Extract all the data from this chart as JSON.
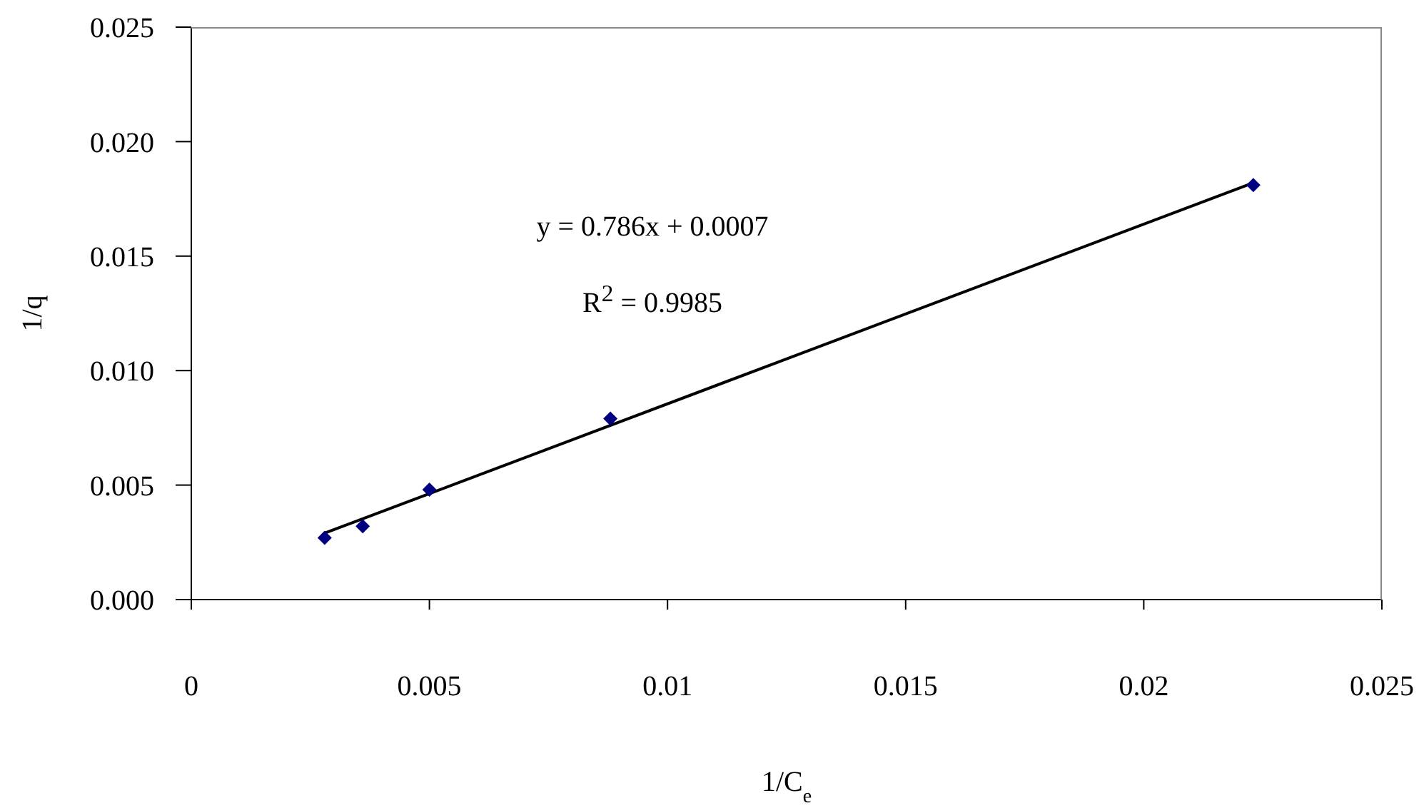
{
  "chart_data": {
    "type": "scatter",
    "xlabel": "1/C$_{e}$",
    "ylabel": "1/q",
    "annotations": [
      "y = 0.786x + 0.0007",
      "R$^{2}$ = 0.9985"
    ],
    "x": [
      0.0028,
      0.0036,
      0.005,
      0.0088,
      0.0223
    ],
    "series": [
      {
        "color": "#000080",
        "marker": "diamond",
        "values": [
          0.0027,
          0.0032,
          0.0048,
          0.0079,
          0.0181
        ]
      },
      {
        "type": "line",
        "color": "#000000",
        "x": [
          0.0028,
          0.0223
        ],
        "values": [
          0.0029,
          0.0182
        ]
      }
    ],
    "xlim": [
      0,
      0.025
    ],
    "xticks": [
      0,
      0.005,
      0.01,
      0.015,
      0.02,
      0.025
    ],
    "ylim": [
      0,
      0.025
    ],
    "yticks": [
      {
        "value": 0,
        "label": "0.000"
      },
      {
        "value": 0.005,
        "label": "0.005"
      },
      {
        "value": 0.01,
        "label": "0.010"
      },
      {
        "value": 0.015,
        "label": "0.015"
      },
      {
        "value": 0.02,
        "label": "0.020"
      },
      {
        "value": 0.025,
        "label": "0.025"
      }
    ]
  }
}
